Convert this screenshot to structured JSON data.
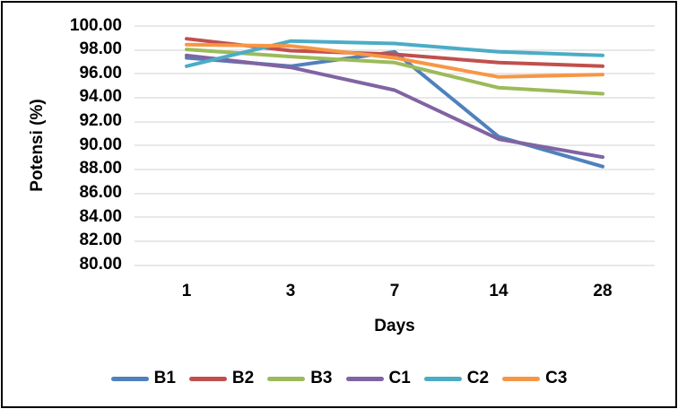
{
  "chart_data": {
    "type": "line",
    "title": "",
    "xlabel": "Days",
    "ylabel": "Potensi (%)",
    "categories": [
      "1",
      "3",
      "7",
      "14",
      "28"
    ],
    "ylim": [
      80,
      100
    ],
    "ytick_step": 2,
    "y_tick_labels": [
      "100.00",
      "98.00",
      "96.00",
      "94.00",
      "92.00",
      "90.00",
      "88.00",
      "86.00",
      "84.00",
      "82.00",
      "80.00"
    ],
    "grid": true,
    "legend_position": "bottom",
    "gridline_color": "#D9D9D9",
    "series": [
      {
        "name": "B1",
        "color": "#4F81BD",
        "values": [
          97.3,
          96.6,
          97.8,
          90.7,
          88.2
        ]
      },
      {
        "name": "B2",
        "color": "#C0504D",
        "values": [
          98.9,
          97.9,
          97.6,
          96.9,
          96.6
        ]
      },
      {
        "name": "B3",
        "color": "#9BBB59",
        "values": [
          98.0,
          97.4,
          96.9,
          94.8,
          94.3
        ]
      },
      {
        "name": "C1",
        "color": "#8064A2",
        "values": [
          97.5,
          96.5,
          94.6,
          90.5,
          89.0
        ]
      },
      {
        "name": "C2",
        "color": "#4BACC6",
        "values": [
          96.6,
          98.7,
          98.5,
          97.8,
          97.5
        ]
      },
      {
        "name": "C3",
        "color": "#F79646",
        "values": [
          98.4,
          98.3,
          97.3,
          95.7,
          95.9
        ]
      }
    ]
  }
}
